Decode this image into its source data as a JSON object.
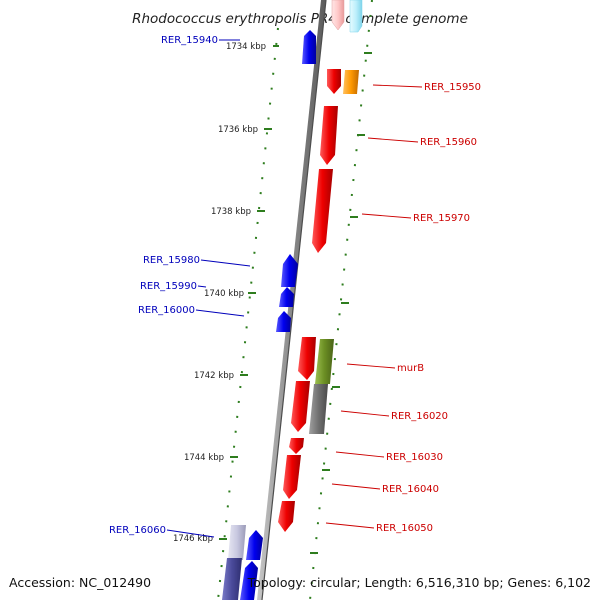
{
  "title": "Rhodococcus erythropolis PR4, complete genome",
  "footer": {
    "accession": "Accession: NC_012490",
    "summary": "Topology: circular; Length: 6,516,310 bp; Genes: 6,102"
  },
  "ruler": {
    "unit": "kbp",
    "ticks": [
      {
        "kbp": 1734,
        "label": "1734 kbp"
      },
      {
        "kbp": 1736,
        "label": "1736 kbp"
      },
      {
        "kbp": 1738,
        "label": "1738 kbp"
      },
      {
        "kbp": 1740,
        "label": "1740 kbp"
      },
      {
        "kbp": 1742,
        "label": "1742 kbp"
      },
      {
        "kbp": 1744,
        "label": "1744 kbp"
      },
      {
        "kbp": 1746,
        "label": "1746 kbp"
      }
    ]
  },
  "colors": {
    "forward": "#ee0000",
    "reverse": "#0000dd",
    "forward_label": "#cc0000",
    "reverse_label": "#0000bb",
    "backbone": "#888888",
    "ruler_dash": "#2e7d1e",
    "orange": "#ff9900",
    "olive": "#6b8e23",
    "gray": "#707070",
    "lavender": "#c8c8e0",
    "slate": "#4a4a9a",
    "pink": "#ffc8c8",
    "cyan": "#bdeffb"
  },
  "genes": [
    {
      "label": "RER_15940",
      "strand": "reverse"
    },
    {
      "label": "RER_15950",
      "strand": "forward"
    },
    {
      "label": "RER_15960",
      "strand": "forward"
    },
    {
      "label": "RER_15970",
      "strand": "forward"
    },
    {
      "label": "RER_15980",
      "strand": "reverse"
    },
    {
      "label": "RER_15990",
      "strand": "reverse"
    },
    {
      "label": "RER_16000",
      "strand": "reverse"
    },
    {
      "label": "murB",
      "strand": "forward"
    },
    {
      "label": "RER_16020",
      "strand": "forward"
    },
    {
      "label": "RER_16030",
      "strand": "forward"
    },
    {
      "label": "RER_16040",
      "strand": "forward"
    },
    {
      "label": "RER_16050",
      "strand": "forward"
    },
    {
      "label": "RER_16060",
      "strand": "reverse"
    }
  ]
}
